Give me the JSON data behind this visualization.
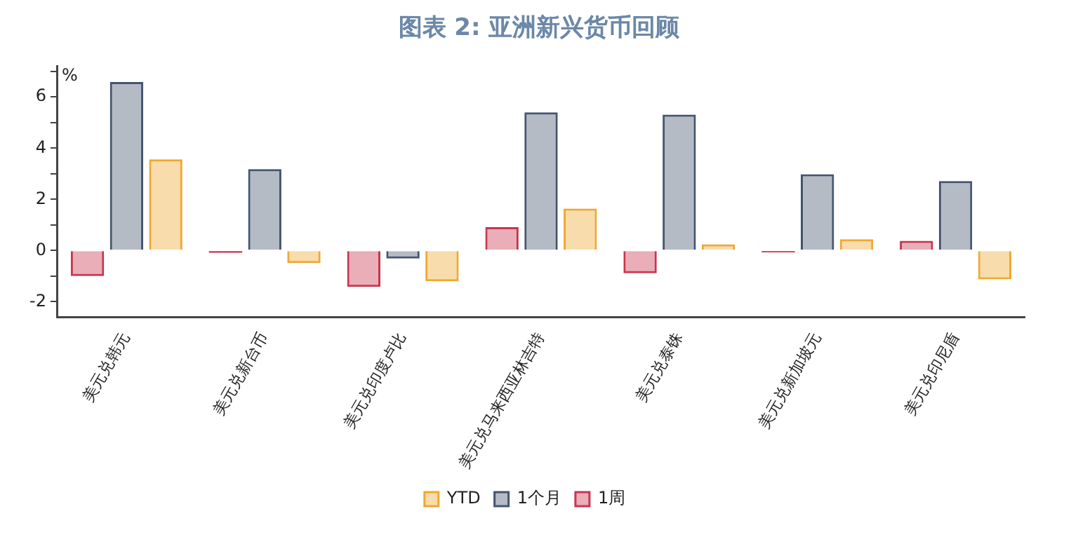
{
  "chart_data": {
    "type": "bar",
    "title": "图表 2:  亚洲新兴货币回顾",
    "ylabel": "%",
    "categories": [
      "美元兑韩元",
      "美元兑新台币",
      "美元兑印度卢比",
      "美元兑马来西亚林吉特",
      "美元兑泰铢",
      "美元兑新加坡元",
      "美元兑印尼盾"
    ],
    "series": [
      {
        "name": "1周",
        "color": "#c8354e",
        "values": [
          -1.0,
          -0.09,
          -1.42,
          0.91,
          -0.89,
          -0.07,
          0.38
        ]
      },
      {
        "name": "1个月",
        "color": "#44546f",
        "values": [
          6.58,
          3.18,
          -0.31,
          5.4,
          5.31,
          2.98,
          2.71
        ]
      },
      {
        "name": "YTD",
        "color": "#f0a830",
        "values": [
          3.56,
          -0.49,
          -1.2,
          1.64,
          0.24,
          0.44,
          -1.13
        ]
      }
    ],
    "ylim": [
      -2.6,
      7.2
    ],
    "yticks": [
      -2,
      {
        "value": -1,
        "label": null
      },
      0,
      {
        "value": 1,
        "label": null
      },
      2,
      {
        "value": 3,
        "label": null
      },
      4,
      {
        "value": 5,
        "label": null
      },
      6,
      {
        "value": 7,
        "label": null
      }
    ],
    "grid": false,
    "legend": "bottom"
  }
}
